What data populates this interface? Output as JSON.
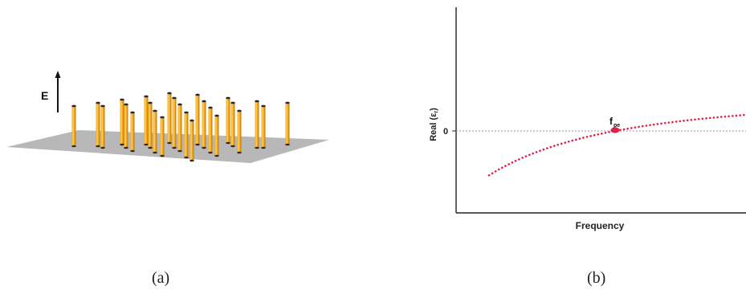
{
  "panel_a": {
    "caption": "(a)",
    "field_label": "E",
    "colors": {
      "plane": "#b8b8b8",
      "wire": "#f2a81d",
      "wire_highlight": "#ffd36b",
      "wire_shadow": "#c47f0a",
      "cap": "#2a2a2a",
      "arrow": "#111111"
    }
  },
  "panel_b": {
    "caption": "(b)",
    "xlabel": "Frequency",
    "ylabel_main": "Real (ε",
    "ylabel_sub": "r",
    "ylabel_close": ")",
    "zero_tick_label": "0",
    "marker_label_main": "f",
    "marker_label_sub": "pe",
    "colors": {
      "curve": "#e0224b",
      "marker": "#e0224b",
      "axis": "#222222",
      "zero_line": "#9a9a9a"
    }
  }
}
